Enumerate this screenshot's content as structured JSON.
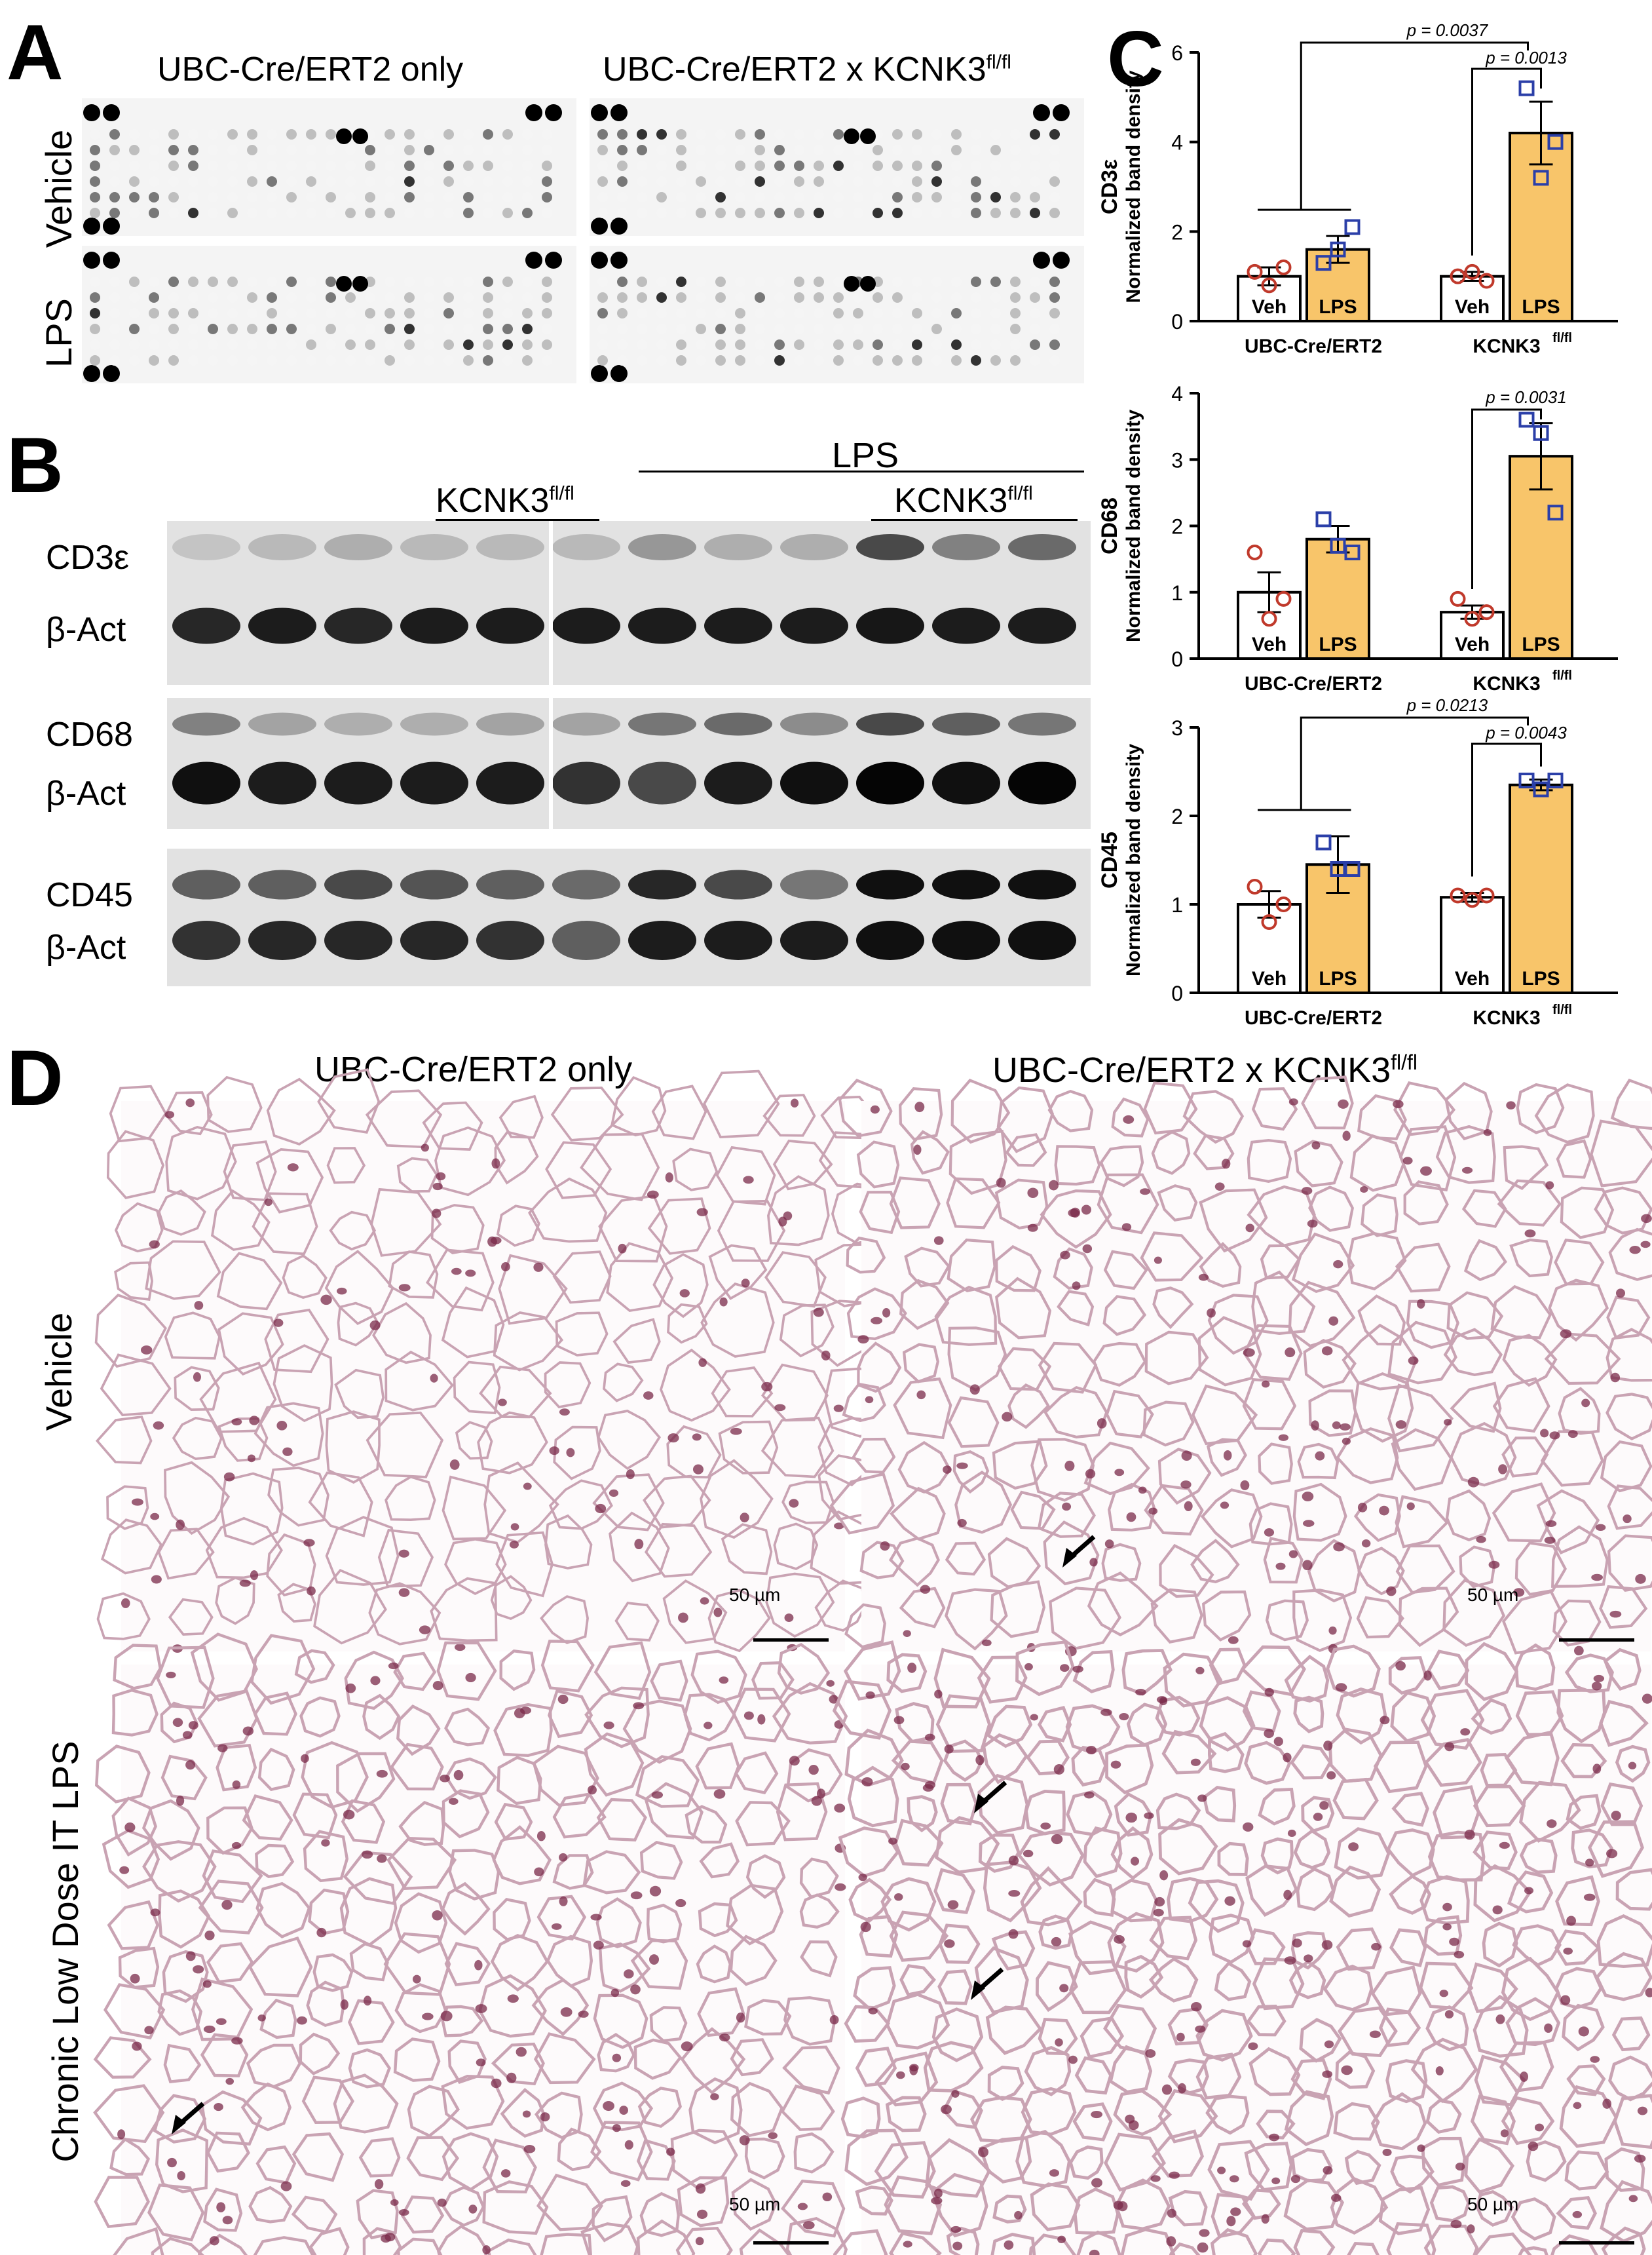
{
  "panels": {
    "A": {
      "letter": "A",
      "col_left": "UBC-Cre/ERT2 only",
      "col_right_base": "UBC-Cre/ERT2 x KCNK3",
      "col_right_sup": "fl/fl",
      "row_top": "Vehicle",
      "row_bottom": "LPS"
    },
    "B": {
      "letter": "B",
      "lps": "LPS",
      "kcnk3_base": "KCNK3",
      "kcnk3_sup": "fl/fl",
      "rows": [
        "CD3ε",
        "β-Act",
        "CD68",
        "β-Act",
        "CD45",
        "β-Act"
      ]
    },
    "C": {
      "letter": "C",
      "groups": [
        "UBC-Cre/ERT2",
        "KCNK3"
      ],
      "group_sup": "fl/fl",
      "bar_labels": [
        "Veh",
        "LPS",
        "Veh",
        "LPS"
      ],
      "ylabel_sub": "Normalized band density"
    },
    "D": {
      "letter": "D",
      "col_left": "UBC-Cre/ERT2 only",
      "col_right_base": "UBC-Cre/ERT2 x KCNK3",
      "col_right_sup": "fl/fl",
      "row_top": "Vehicle",
      "row_bottom": "Chronic Low Dose  IT LPS",
      "scale": "50 µm"
    }
  },
  "chart_data": [
    {
      "type": "bar",
      "ylabel_marker": "CD3ε",
      "ylabel": "Normalized band density",
      "categories": [
        "UBC-Cre/ERT2 Veh",
        "UBC-Cre/ERT2 LPS",
        "KCNK3fl/fl Veh",
        "KCNK3fl/fl LPS"
      ],
      "values": [
        1.0,
        1.6,
        1.0,
        4.2
      ],
      "errors": [
        0.2,
        0.3,
        0.1,
        0.7
      ],
      "points": [
        [
          1.1,
          0.8,
          1.2
        ],
        [
          1.3,
          1.6,
          2.1
        ],
        [
          1.0,
          1.1,
          0.9
        ],
        [
          5.2,
          3.2,
          4.0
        ]
      ],
      "ylim": [
        0,
        6
      ],
      "yticks": [
        0,
        2,
        4,
        6
      ],
      "pvalues": [
        "p = 0.0037",
        "p = 0.0013"
      ]
    },
    {
      "type": "bar",
      "ylabel_marker": "CD68",
      "ylabel": "Normalized band density",
      "categories": [
        "UBC-Cre/ERT2 Veh",
        "UBC-Cre/ERT2 LPS",
        "KCNK3fl/fl Veh",
        "KCNK3fl/fl LPS"
      ],
      "values": [
        1.0,
        1.8,
        0.7,
        3.05
      ],
      "errors": [
        0.3,
        0.2,
        0.1,
        0.5
      ],
      "points": [
        [
          1.6,
          0.6,
          0.9
        ],
        [
          2.1,
          1.7,
          1.6
        ],
        [
          0.9,
          0.6,
          0.7
        ],
        [
          3.6,
          3.4,
          2.2
        ]
      ],
      "ylim": [
        0,
        4
      ],
      "yticks": [
        0,
        1,
        2,
        3,
        4
      ],
      "pvalues": [
        "p = 0.0031"
      ]
    },
    {
      "type": "bar",
      "ylabel_marker": "CD45",
      "ylabel": "Normalized band density",
      "categories": [
        "UBC-Cre/ERT2 Veh",
        "UBC-Cre/ERT2 LPS",
        "KCNK3fl/fl Veh",
        "KCNK3fl/fl LPS"
      ],
      "values": [
        1.0,
        1.45,
        1.08,
        2.35
      ],
      "errors": [
        0.15,
        0.32,
        0.05,
        0.06
      ],
      "points": [
        [
          1.2,
          0.8,
          1.0
        ],
        [
          1.7,
          1.4,
          1.4
        ],
        [
          1.1,
          1.05,
          1.1
        ],
        [
          2.4,
          2.3,
          2.4
        ]
      ],
      "ylim": [
        0,
        3
      ],
      "yticks": [
        0,
        1,
        2,
        3
      ],
      "pvalues": [
        "p = 0.0213",
        "p = 0.0043"
      ]
    }
  ],
  "colors": {
    "veh_bar": "#ffffff",
    "lps_bar": "#f8c56a",
    "veh_points": "#c0392b",
    "lps_points": "#2b3fa8",
    "he_stain": "#7a2a4a"
  }
}
